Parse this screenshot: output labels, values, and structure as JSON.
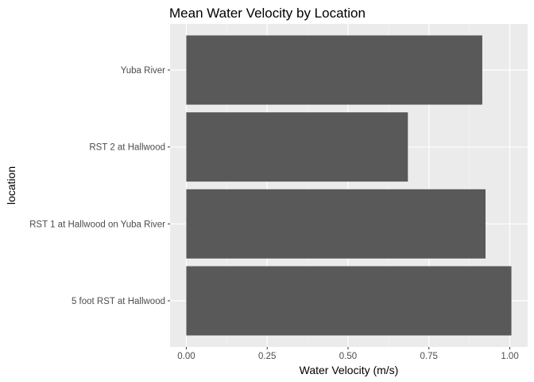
{
  "chart_data": {
    "type": "bar",
    "orientation": "horizontal",
    "title": "Mean Water Velocity by Location",
    "xlabel": "Water Velocity (m/s)",
    "ylabel": "location",
    "categories": [
      "5 foot RST at Hallwood",
      "RST 1 at Hallwood on Yuba River",
      "RST 2 at Hallwood",
      "Yuba River"
    ],
    "values": [
      1.005,
      0.925,
      0.685,
      0.915
    ],
    "xlim": [
      -0.0502,
      1.0552
    ],
    "xticks": [
      0.0,
      0.25,
      0.5,
      0.75,
      1.0
    ],
    "xtick_labels": [
      "0.00",
      "0.25",
      "0.50",
      "0.75",
      "1.00"
    ],
    "grid": true,
    "legend": "none",
    "colors": {
      "bar": "#595959",
      "panel": "#ebebeb",
      "grid_major": "#ffffff",
      "grid_minor": "#f5f5f5",
      "tick_label": "#4d4d4d",
      "tick_mark": "#333333"
    }
  }
}
